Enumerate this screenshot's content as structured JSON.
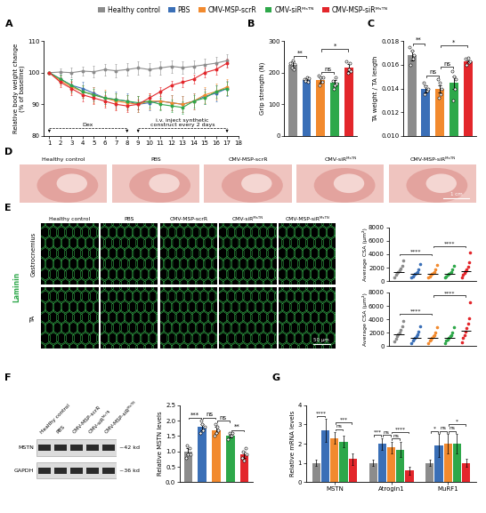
{
  "chart_data": [
    {
      "panel": "A",
      "type": "line",
      "ylabel": "Relative body weight change\n(% of baseline)",
      "marker": "o",
      "legend": "upper center",
      "x": [
        1,
        2,
        3,
        4,
        5,
        6,
        7,
        8,
        9,
        10,
        11,
        12,
        13,
        14,
        15,
        16,
        17
      ],
      "xlim": [
        0.5,
        18
      ],
      "xticks": [
        1,
        2,
        3,
        4,
        5,
        6,
        7,
        8,
        9,
        10,
        11,
        12,
        13,
        14,
        15,
        16,
        17,
        18
      ],
      "ylim": [
        80,
        110
      ],
      "yticks": [
        80,
        90,
        100,
        110
      ],
      "series": [
        {
          "name": "Healthy control",
          "color": "#8c8c8c",
          "values": [
            100,
            100.2,
            100,
            100.5,
            100.3,
            101,
            100.6,
            101,
            101.5,
            101,
            101.5,
            102,
            101.6,
            102,
            102.5,
            103,
            103.8
          ],
          "errors": [
            0,
            1.2,
            1.5,
            1.5,
            1.8,
            1.8,
            2,
            2,
            2,
            2,
            2,
            2,
            2,
            2,
            2,
            2,
            2
          ]
        },
        {
          "name": "PBS",
          "color": "#3a6fb7",
          "values": [
            100,
            98,
            96,
            95,
            93.5,
            92,
            91.5,
            91,
            90,
            90.5,
            91,
            90.5,
            90,
            91,
            92.5,
            93.5,
            95
          ],
          "errors": [
            0,
            1.5,
            2,
            2,
            2,
            2,
            2.5,
            2.5,
            2.5,
            2.5,
            2.5,
            2.5,
            2.5,
            2.5,
            2.5,
            2.5,
            2.5
          ]
        },
        {
          "name": "CMV-MSP-scrR",
          "color": "#f28a2e",
          "values": [
            100,
            97.5,
            95.5,
            94,
            93,
            92,
            91,
            90.5,
            90,
            91,
            91,
            90.5,
            90,
            91,
            93,
            94,
            95.5
          ],
          "errors": [
            0,
            1.5,
            2,
            2,
            2.5,
            2.5,
            2.5,
            2.5,
            2.5,
            2.5,
            2.5,
            2.5,
            2.5,
            2.5,
            2.5,
            2.5,
            2.5
          ]
        },
        {
          "name": "CMV-siRᴹˢᵀᴺ",
          "color": "#2ea84a",
          "values": [
            100,
            98,
            96,
            94,
            93,
            92,
            91.5,
            91,
            90.5,
            91,
            90,
            89.5,
            89,
            91,
            92,
            94,
            95
          ],
          "errors": [
            0,
            1.5,
            2,
            2,
            2,
            2,
            2,
            2,
            2,
            2,
            2,
            2,
            2,
            2,
            2,
            2,
            2
          ]
        },
        {
          "name": "CMV-MSP-siRᴹˢᵀᴺ",
          "color": "#e3262b",
          "values": [
            100,
            97,
            95,
            93,
            92,
            91,
            90,
            89.5,
            90,
            92,
            94,
            96,
            97,
            98,
            100,
            101,
            103
          ],
          "errors": [
            0,
            1.5,
            2,
            2,
            2,
            2,
            2,
            2,
            1.5,
            1.5,
            1.5,
            1.5,
            1.5,
            1.5,
            1.5,
            1.5,
            1.5
          ]
        }
      ],
      "annotations": [
        {
          "text": "Dex",
          "x": [
            1,
            8
          ]
        },
        {
          "text": "i.v. inject synthetic\nconstruct every 2 days",
          "x": [
            9,
            17
          ]
        }
      ]
    },
    {
      "panel": "B",
      "type": "bar",
      "ylabel": "Grip strength (N)",
      "tick_labels": "y",
      "colors": [
        "#8c8c8c",
        "#3a6fb7",
        "#f28a2e",
        "#2ea84a",
        "#e3262b"
      ],
      "values": [
        225,
        178,
        178,
        167,
        216
      ],
      "errors": [
        10,
        5,
        10,
        10,
        10
      ],
      "points": [
        [
          230,
          215,
          240,
          210,
          228
        ],
        [
          180,
          175,
          185,
          170,
          182
        ],
        [
          190,
          160,
          185,
          170,
          185
        ],
        [
          175,
          150,
          160,
          185,
          165
        ],
        [
          235,
          200,
          210,
          230,
          205
        ]
      ],
      "ylim": [
        0,
        300
      ],
      "yticks": [
        0,
        100,
        200,
        300
      ],
      "significance": [
        {
          "pair": [
            0,
            1
          ],
          "label": "**"
        },
        {
          "pair": [
            2,
            3
          ],
          "label": "ns"
        },
        {
          "pair": [
            2,
            4
          ],
          "label": "*"
        }
      ]
    },
    {
      "panel": "C",
      "type": "bar",
      "ylabel": "TA weight / TA length",
      "tick_labels": "y",
      "colors": [
        "#8c8c8c",
        "#3a6fb7",
        "#f28a2e",
        "#2ea84a",
        "#e3262b"
      ],
      "values": [
        0.0168,
        0.014,
        0.014,
        0.0145,
        0.0163
      ],
      "errors": [
        0.0004,
        0.0003,
        0.0003,
        0.0005,
        0.0001
      ],
      "points": [
        [
          0.0175,
          0.016,
          0.0172,
          0.0165,
          0.0168
        ],
        [
          0.0145,
          0.0135,
          0.0142,
          0.0138,
          0.014
        ],
        [
          0.0148,
          0.0132,
          0.0145,
          0.0135,
          0.014
        ],
        [
          0.0155,
          0.013,
          0.015,
          0.014,
          0.0148
        ],
        [
          0.0165,
          0.016,
          0.0166,
          0.0162,
          0.0163
        ]
      ],
      "ylim": [
        0.01,
        0.018
      ],
      "yticks": [
        {
          "value": 0.01,
          "label": "0.010"
        },
        0.012,
        0.014,
        0.016,
        0.018
      ],
      "significance": [
        {
          "pair": [
            0,
            1
          ],
          "label": "**"
        },
        {
          "pair": [
            1,
            2
          ],
          "label": "ns"
        },
        {
          "pair": [
            2,
            3
          ],
          "label": "ns"
        },
        {
          "pair": [
            2,
            4
          ],
          "label": "*"
        }
      ]
    },
    {
      "type": "scatter",
      "tissue": "Gastrocnemius",
      "ylabel": "Average CSA (μm²)",
      "tick_labels": "y",
      "colors": [
        "#8c8c8c",
        "#3a6fb7",
        "#f28a2e",
        "#2ea84a",
        "#e3262b"
      ],
      "points": [
        [
          600,
          900,
          1200,
          1400,
          1600,
          1900,
          2300,
          3000
        ],
        [
          500,
          750,
          950,
          1100,
          1250,
          1400,
          1800,
          2500
        ],
        [
          500,
          700,
          900,
          1050,
          1200,
          1400,
          1700,
          2400
        ],
        [
          500,
          700,
          900,
          1050,
          1200,
          1350,
          1700,
          2300
        ],
        [
          600,
          900,
          1200,
          1500,
          1800,
          2200,
          2800,
          4200
        ]
      ],
      "means": [
        1400,
        1100,
        1050,
        1050,
        1500
      ],
      "ylim": [
        0,
        8000
      ],
      "yticks": [
        0,
        2000,
        4000,
        6000,
        8000
      ],
      "significance": [
        {
          "pair": [
            0,
            2
          ],
          "label": "****"
        },
        {
          "pair": [
            2,
            4
          ],
          "label": "****"
        }
      ]
    },
    {
      "type": "scatter",
      "tissue": "TA",
      "ylabel": "Average CSA (μm²)",
      "tick_labels": "y",
      "colors": [
        "#8c8c8c",
        "#3a6fb7",
        "#f28a2e",
        "#2ea84a",
        "#e3262b"
      ],
      "points": [
        [
          700,
          1100,
          1500,
          1800,
          2100,
          2500,
          3000,
          3800
        ],
        [
          500,
          800,
          1100,
          1300,
          1500,
          1800,
          2200,
          3000
        ],
        [
          500,
          800,
          1050,
          1250,
          1450,
          1700,
          2100,
          2800
        ],
        [
          500,
          800,
          1050,
          1250,
          1450,
          1700,
          2100,
          2900
        ],
        [
          600,
          1200,
          1700,
          2200,
          2700,
          3300,
          4200,
          6500
        ]
      ],
      "means": [
        1800,
        1300,
        1250,
        1250,
        2300
      ],
      "ylim": [
        0,
        8000
      ],
      "yticks": [
        0,
        2000,
        4000,
        6000,
        8000
      ],
      "significance": [
        {
          "pair": [
            0,
            2
          ],
          "label": "****"
        },
        {
          "pair": [
            2,
            4
          ],
          "label": "****"
        }
      ]
    },
    {
      "panel": "F",
      "type": "bar",
      "ylabel": "Relative MSTN levels",
      "tick_labels": "y",
      "colors": [
        "#8c8c8c",
        "#3a6fb7",
        "#f28a2e",
        "#2ea84a",
        "#e3262b"
      ],
      "values": [
        1.0,
        1.8,
        1.7,
        1.5,
        0.9
      ],
      "errors": [
        0.1,
        0.1,
        0.1,
        0.05,
        0.1
      ],
      "points": [
        [
          0.8,
          1.2,
          0.9,
          1.1,
          0.9
        ],
        [
          1.6,
          2.0,
          1.9,
          1.7,
          1.8
        ],
        [
          1.5,
          1.9,
          1.6,
          1.8,
          1.7
        ],
        [
          1.4,
          1.6,
          1.5,
          1.5,
          1.6
        ],
        [
          0.8,
          1.0,
          0.7,
          1.1,
          0.9
        ]
      ],
      "ylim": [
        0,
        2.5
      ],
      "yticks": [
        {
          "value": 0,
          "label": "0.0"
        },
        0.5,
        1.0,
        1.5,
        2.0,
        2.5
      ],
      "significance": [
        {
          "pair": [
            0,
            1
          ],
          "label": "***"
        },
        {
          "pair": [
            1,
            2
          ],
          "label": "ns"
        },
        {
          "pair": [
            2,
            3
          ],
          "label": "ns"
        },
        {
          "pair": [
            3,
            4
          ],
          "label": "**"
        }
      ],
      "blot": {
        "lanes": [
          "Healthy control",
          "PBS",
          "CMV-MSP-scrR",
          "CMV-siRᴹˢᵀᴺ",
          "CMV-MSP-siRᴹˢᵀᴺ"
        ],
        "bands": [
          {
            "name": "MSTN",
            "size": "~42 kd"
          },
          {
            "name": "GAPDH",
            "size": "~36 kd"
          }
        ]
      }
    },
    {
      "panel": "G",
      "type": "grouped_bar",
      "ylabel": "Relative mRNA levels",
      "categories": [
        "MSTN",
        "Atrogin1",
        "MuRF1"
      ],
      "ylim": [
        0,
        4
      ],
      "yticks": [
        0,
        1,
        2,
        3,
        4
      ],
      "series": [
        {
          "name": "Healthy control",
          "color": "#8c8c8c",
          "values": [
            1.0,
            1.0,
            1.0
          ],
          "errors": [
            0.15,
            0.15,
            0.15
          ]
        },
        {
          "name": "PBS",
          "color": "#3a6fb7",
          "values": [
            2.7,
            2.0,
            1.9
          ],
          "errors": [
            0.6,
            0.3,
            0.6
          ]
        },
        {
          "name": "CMV-MSP-scrR",
          "color": "#f28a2e",
          "values": [
            2.3,
            1.8,
            2.0
          ],
          "errors": [
            0.3,
            0.3,
            0.5
          ]
        },
        {
          "name": "CMV-siRᴹˢᵀᴺ",
          "color": "#2ea84a",
          "values": [
            2.1,
            1.7,
            2.0
          ],
          "errors": [
            0.3,
            0.4,
            0.5
          ]
        },
        {
          "name": "CMV-MSP-siRᴹˢᵀᴺ",
          "color": "#e3262b",
          "values": [
            1.2,
            0.6,
            1.0
          ],
          "errors": [
            0.3,
            0.2,
            0.2
          ]
        }
      ],
      "significance": [
        {
          "category": 0,
          "pair": [
            0,
            1
          ],
          "label": "****"
        },
        {
          "category": 0,
          "pair": [
            2,
            3
          ],
          "label": "ns"
        },
        {
          "category": 0,
          "pair": [
            2,
            4
          ],
          "label": "***"
        },
        {
          "category": 1,
          "pair": [
            0,
            1
          ],
          "label": "***"
        },
        {
          "category": 1,
          "pair": [
            1,
            2
          ],
          "label": "ns"
        },
        {
          "category": 1,
          "pair": [
            2,
            3
          ],
          "label": "ns"
        },
        {
          "category": 1,
          "pair": [
            2,
            4
          ],
          "label": "****"
        },
        {
          "category": 2,
          "pair": [
            0,
            1
          ],
          "label": "*"
        },
        {
          "category": 2,
          "pair": [
            1,
            2
          ],
          "label": "ns"
        },
        {
          "category": 2,
          "pair": [
            2,
            3
          ],
          "label": "ns"
        },
        {
          "category": 2,
          "pair": [
            2,
            4
          ],
          "label": "*"
        }
      ]
    }
  ],
  "images": {
    "D": {
      "panel": "D",
      "columns": [
        "Healthy control",
        "PBS",
        "CMV-MSP-scrR",
        "CMV-siRᴹˢᵀᴺ",
        "CMV-MSP-siRᴹˢᵀᴺ"
      ],
      "scale_bar": "1 cm"
    },
    "E": {
      "panel": "E",
      "stain": "Laminin",
      "columns": [
        "Healthy control",
        "PBS",
        "CMV-MSP-scrR",
        "CMV-siRᴹˢᵀᴺ",
        "CMV-MSP-siRᴹˢᵀᴺ"
      ],
      "scale_bar": "50 μm"
    }
  }
}
